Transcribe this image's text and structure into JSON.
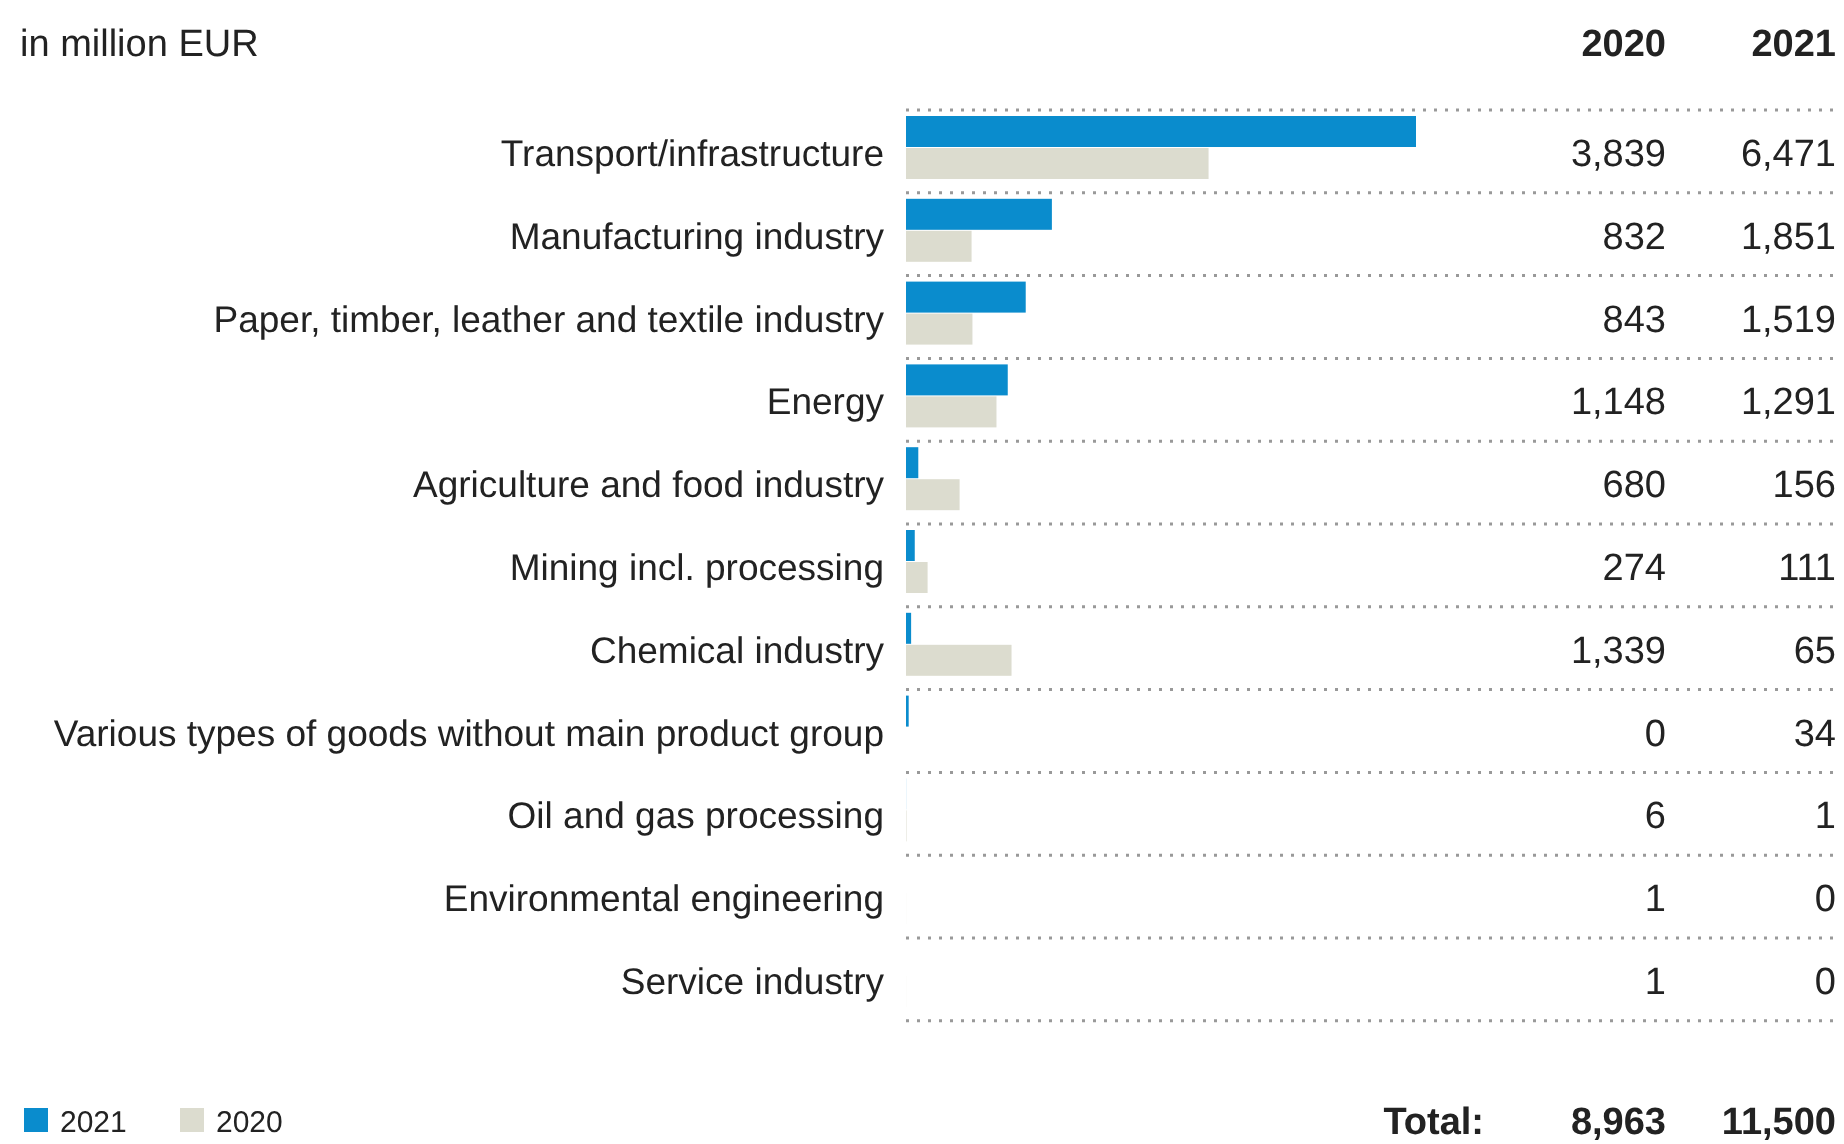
{
  "chart_data": {
    "type": "bar",
    "orientation": "horizontal",
    "title": "in million EUR",
    "categories": [
      "Transport/infrastructure",
      "Manufacturing industry",
      "Paper, timber, leather and textile industry",
      "Energy",
      "Agriculture and food industry",
      "Mining incl. processing",
      "Chemical industry",
      "Various types of goods without main product group",
      "Oil and gas processing",
      "Environmental engineering",
      "Service industry"
    ],
    "series": [
      {
        "name": "2021",
        "color": "#0a8ccd",
        "values": [
          6471,
          1851,
          1519,
          1291,
          156,
          111,
          65,
          34,
          1,
          0,
          0
        ],
        "value_labels": [
          "6,471",
          "1,851",
          "1,519",
          "1,291",
          "156",
          "111",
          "65",
          "34",
          "1",
          "0",
          "0"
        ]
      },
      {
        "name": "2020",
        "color": "#dcdccf",
        "values": [
          3839,
          832,
          843,
          1148,
          680,
          274,
          1339,
          0,
          6,
          1,
          1
        ],
        "value_labels": [
          "3,839",
          "832",
          "843",
          "1,148",
          "680",
          "274",
          "1,339",
          "0",
          "6",
          "1",
          "1"
        ]
      }
    ],
    "legend": "bottom left",
    "annotations": [
      "Total:",
      "8,963",
      "11,500"
    ]
  }
}
